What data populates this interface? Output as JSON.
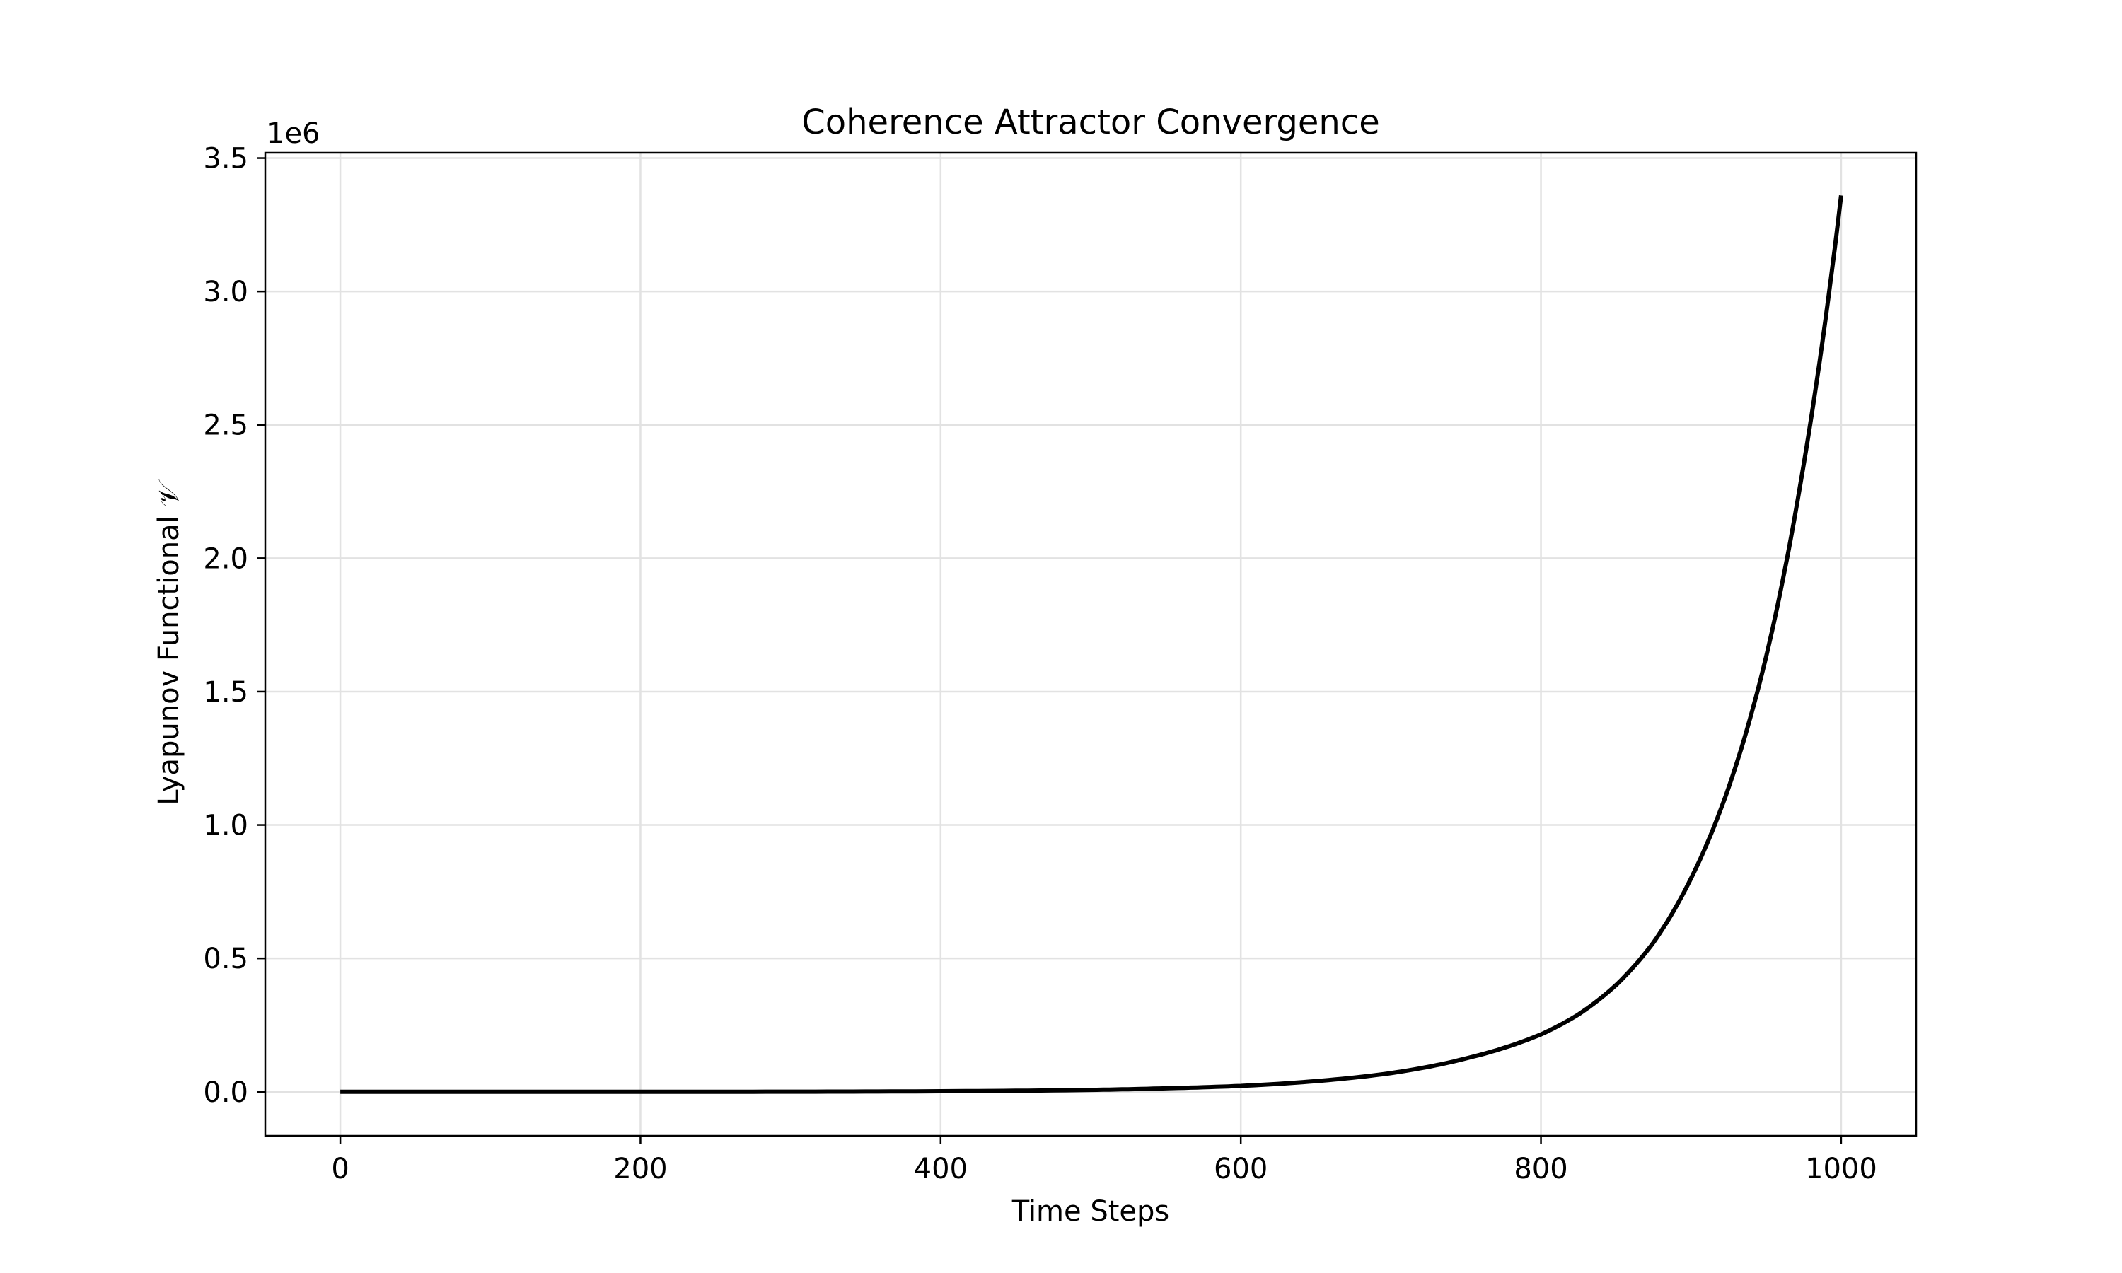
{
  "chart_data": {
    "type": "line",
    "title": "Coherence Attractor Convergence",
    "xlabel": "Time Steps",
    "ylabel": "Lyapunov Functional 𝒱",
    "y_offset_label": "1e6",
    "xlim": [
      -50,
      1050
    ],
    "ylim": [
      -165000,
      3520000
    ],
    "x_ticks": [
      0,
      200,
      400,
      600,
      800,
      1000
    ],
    "x_tick_labels": [
      "0",
      "200",
      "400",
      "600",
      "800",
      "1000"
    ],
    "y_ticks": [
      0,
      500000,
      1000000,
      1500000,
      2000000,
      2500000,
      3000000,
      3500000
    ],
    "y_tick_labels": [
      "0.0",
      "0.5",
      "1.0",
      "1.5",
      "2.0",
      "2.5",
      "3.0",
      "3.5"
    ],
    "grid": true,
    "legend": "none",
    "series": [
      {
        "color": "#000000",
        "x": [
          0,
          100,
          200,
          300,
          400,
          500,
          550,
          600,
          650,
          700,
          750,
          800,
          825,
          850,
          875,
          900,
          925,
          950,
          975,
          1000
        ],
        "y": [
          0,
          0,
          100,
          400,
          2000,
          7000,
          13000,
          22000,
          40000,
          70000,
          125000,
          215000,
          290000,
          400000,
          560000,
          800000,
          1140000,
          1630000,
          2350000,
          3360000
        ]
      }
    ]
  }
}
